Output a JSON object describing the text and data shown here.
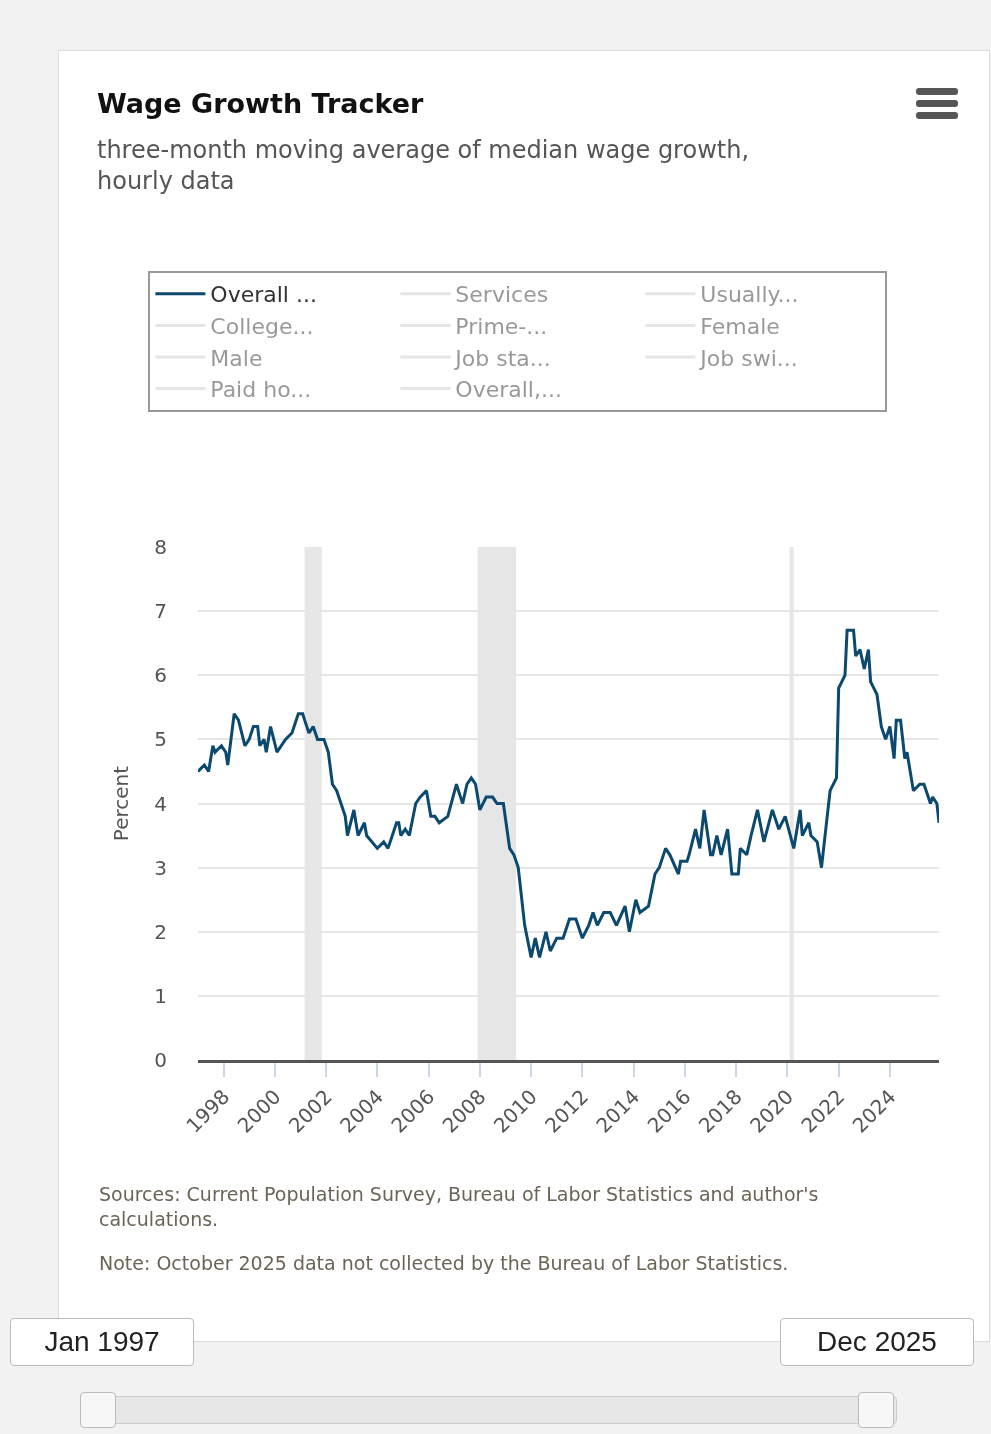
{
  "chart_data": {
    "type": "line",
    "title": "Wage Growth Tracker",
    "subtitle": "three-month moving average of median wage growth, hourly data",
    "ylabel": "Percent",
    "legend": "top",
    "grid": "y",
    "marker": "none",
    "line_style": "solid",
    "xlim": [
      "1997-01",
      "2025-12"
    ],
    "xticks": [
      "1998",
      "2000",
      "2002",
      "2004",
      "2006",
      "2008",
      "2010",
      "2012",
      "2014",
      "2016",
      "2018",
      "2020",
      "2022",
      "2024"
    ],
    "ylim": [
      0,
      8
    ],
    "yticks": [
      0,
      1,
      2,
      3,
      4,
      5,
      6,
      7,
      8
    ],
    "bands": [
      {
        "axis": "x",
        "from": "2001-03",
        "to": "2001-11",
        "color": "#e6e6e6"
      },
      {
        "axis": "x",
        "from": "2007-12",
        "to": "2009-06",
        "color": "#e6e6e6"
      },
      {
        "axis": "x",
        "from": "2020-02",
        "to": "2020-04",
        "color": "#e6e6e6"
      }
    ],
    "annotations": [
      "Sources: Current Population Survey, Bureau of Labor Statistics and author's calculations.",
      "Note: October 2025 data not collected by the Bureau of Labor Statistics.",
      "Jan 1997",
      "Dec 2025"
    ],
    "x": [
      "1997-01",
      "1997-04",
      "1997-06",
      "1997-08",
      "1997-09",
      "1997-12",
      "1998-02",
      "1998-03",
      "1998-06",
      "1998-08",
      "1998-11",
      "1999-01",
      "1999-03",
      "1999-05",
      "1999-06",
      "1999-08",
      "1999-09",
      "1999-11",
      "2000-02",
      "2000-06",
      "2000-09",
      "2000-12",
      "2001-02",
      "2001-03",
      "2001-05",
      "2001-07",
      "2001-08",
      "2001-09",
      "2001-12",
      "2002-02",
      "2002-04",
      "2002-06",
      "2002-10",
      "2002-11",
      "2003-02",
      "2003-04",
      "2003-07",
      "2003-08",
      "2004-01",
      "2004-04",
      "2004-06",
      "2004-10",
      "2004-11",
      "2004-12",
      "2005-02",
      "2005-04",
      "2005-07",
      "2005-09",
      "2005-12",
      "2006-02",
      "2006-04",
      "2006-06",
      "2006-10",
      "2007-02",
      "2007-04",
      "2007-05",
      "2007-07",
      "2007-09",
      "2007-11",
      "2008-01",
      "2008-04",
      "2008-07",
      "2008-09",
      "2008-12",
      "2009-03",
      "2009-05",
      "2009-07",
      "2009-10",
      "2010-01",
      "2010-03",
      "2010-05",
      "2010-08",
      "2010-10",
      "2011-01",
      "2011-04",
      "2011-07",
      "2011-10",
      "2012-01",
      "2012-04",
      "2012-06",
      "2012-08",
      "2012-11",
      "2013-02",
      "2013-05",
      "2013-09",
      "2013-11",
      "2014-02",
      "2014-04",
      "2014-08",
      "2014-11",
      "2015-01",
      "2015-04",
      "2015-06",
      "2015-10",
      "2015-11",
      "2016-02",
      "2016-03",
      "2016-06",
      "2016-08",
      "2016-10",
      "2017-01",
      "2017-02",
      "2017-04",
      "2017-06",
      "2017-09",
      "2017-11",
      "2018-02",
      "2018-03",
      "2018-06",
      "2018-08",
      "2018-11",
      "2019-02",
      "2019-06",
      "2019-09",
      "2019-12",
      "2020-04",
      "2020-07",
      "2020-08",
      "2020-11",
      "2020-12",
      "2021-03",
      "2021-05",
      "2021-08",
      "2021-09",
      "2021-12",
      "2022-01",
      "2022-04",
      "2022-05",
      "2022-08",
      "2022-09",
      "2022-11",
      "2023-01",
      "2023-03",
      "2023-04",
      "2023-07",
      "2023-09",
      "2023-11",
      "2024-01",
      "2024-03",
      "2024-04",
      "2024-06",
      "2024-08",
      "2024-09",
      "2024-12",
      "2025-03",
      "2025-05",
      "2025-08",
      "2025-09",
      "2025-11",
      "2025-12"
    ],
    "series": [
      {
        "name": "Overall ...",
        "color": "#0b4a6e",
        "values": [
          4.5,
          4.6,
          4.5,
          4.9,
          4.8,
          4.9,
          4.8,
          4.6,
          5.4,
          5.3,
          4.9,
          5.0,
          5.2,
          5.2,
          4.9,
          5.0,
          4.8,
          5.2,
          4.8,
          5.0,
          5.1,
          5.4,
          5.4,
          5.3,
          5.1,
          5.2,
          5.1,
          5.0,
          5.0,
          4.8,
          4.3,
          4.2,
          3.8,
          3.5,
          3.9,
          3.5,
          3.7,
          3.5,
          3.3,
          3.4,
          3.3,
          3.7,
          3.7,
          3.5,
          3.6,
          3.5,
          4.0,
          4.1,
          4.2,
          3.8,
          3.8,
          3.7,
          3.8,
          4.3,
          4.1,
          4.0,
          4.3,
          4.4,
          4.3,
          3.9,
          4.1,
          4.1,
          4.0,
          4.0,
          3.3,
          3.2,
          3.0,
          2.1,
          1.6,
          1.9,
          1.6,
          2.0,
          1.7,
          1.9,
          1.9,
          2.2,
          2.2,
          1.9,
          2.1,
          2.3,
          2.1,
          2.3,
          2.3,
          2.1,
          2.4,
          2.0,
          2.5,
          2.3,
          2.4,
          2.9,
          3.0,
          3.3,
          3.2,
          2.9,
          3.1,
          3.1,
          3.2,
          3.6,
          3.3,
          3.9,
          3.2,
          3.2,
          3.5,
          3.2,
          3.6,
          2.9,
          2.9,
          3.3,
          3.2,
          3.5,
          3.9,
          3.4,
          3.9,
          3.6,
          3.8,
          3.3,
          3.9,
          3.5,
          3.7,
          3.5,
          3.4,
          3.0,
          3.9,
          4.2,
          4.4,
          5.8,
          6.0,
          6.7,
          6.7,
          6.3,
          6.4,
          6.1,
          6.4,
          5.9,
          5.7,
          5.2,
          5.0,
          5.2,
          4.7,
          5.3,
          5.3,
          4.7,
          4.8,
          4.2,
          4.3,
          4.3,
          4.0,
          4.1,
          4.0,
          3.7
        ]
      },
      {
        "name": "Services",
        "values": [
          null,
          null,
          null,
          null,
          null,
          null,
          null,
          null,
          null,
          null,
          null,
          null,
          null,
          null,
          null,
          null,
          null,
          null,
          null,
          null,
          null,
          null,
          null,
          null,
          null,
          null,
          null,
          null,
          null,
          null,
          null,
          null,
          null,
          null,
          null,
          null,
          null,
          null,
          null,
          null,
          null,
          null,
          null,
          null,
          null,
          null,
          null,
          null,
          null,
          null,
          null,
          null,
          null,
          null,
          null,
          null,
          null,
          null,
          null,
          null,
          null,
          null,
          null,
          null,
          null,
          null,
          null,
          null,
          null,
          null,
          null,
          null,
          null,
          null,
          null,
          null,
          null,
          null,
          null,
          null,
          null,
          null,
          null,
          null,
          null,
          null,
          null,
          null,
          null,
          null,
          null,
          null,
          null,
          null,
          null,
          null,
          null,
          null,
          null,
          null,
          null,
          null,
          null,
          null,
          null,
          null,
          null,
          null,
          null,
          null,
          null,
          null,
          null,
          null,
          null,
          null,
          null,
          null,
          null,
          null,
          null,
          null,
          null,
          null,
          null,
          null,
          null,
          null,
          null,
          null,
          null,
          null,
          null,
          null,
          null,
          null,
          null,
          null,
          null,
          null,
          null,
          null,
          null,
          null,
          null,
          null,
          null,
          null,
          null,
          null
        ]
      },
      {
        "name": "Usually...",
        "values": [
          null,
          null,
          null,
          null,
          null,
          null,
          null,
          null,
          null,
          null,
          null,
          null,
          null,
          null,
          null,
          null,
          null,
          null,
          null,
          null,
          null,
          null,
          null,
          null,
          null,
          null,
          null,
          null,
          null,
          null,
          null,
          null,
          null,
          null,
          null,
          null,
          null,
          null,
          null,
          null,
          null,
          null,
          null,
          null,
          null,
          null,
          null,
          null,
          null,
          null,
          null,
          null,
          null,
          null,
          null,
          null,
          null,
          null,
          null,
          null,
          null,
          null,
          null,
          null,
          null,
          null,
          null,
          null,
          null,
          null,
          null,
          null,
          null,
          null,
          null,
          null,
          null,
          null,
          null,
          null,
          null,
          null,
          null,
          null,
          null,
          null,
          null,
          null,
          null,
          null,
          null,
          null,
          null,
          null,
          null,
          null,
          null,
          null,
          null,
          null,
          null,
          null,
          null,
          null,
          null,
          null,
          null,
          null,
          null,
          null,
          null,
          null,
          null,
          null,
          null,
          null,
          null,
          null,
          null,
          null,
          null,
          null,
          null,
          null,
          null,
          null,
          null,
          null,
          null,
          null,
          null,
          null,
          null,
          null,
          null,
          null,
          null,
          null,
          null,
          null,
          null,
          null,
          null,
          null,
          null,
          null,
          null,
          null,
          null,
          null
        ]
      },
      {
        "name": "College...",
        "values": [
          null,
          null,
          null,
          null,
          null,
          null,
          null,
          null,
          null,
          null,
          null,
          null,
          null,
          null,
          null,
          null,
          null,
          null,
          null,
          null,
          null,
          null,
          null,
          null,
          null,
          null,
          null,
          null,
          null,
          null,
          null,
          null,
          null,
          null,
          null,
          null,
          null,
          null,
          null,
          null,
          null,
          null,
          null,
          null,
          null,
          null,
          null,
          null,
          null,
          null,
          null,
          null,
          null,
          null,
          null,
          null,
          null,
          null,
          null,
          null,
          null,
          null,
          null,
          null,
          null,
          null,
          null,
          null,
          null,
          null,
          null,
          null,
          null,
          null,
          null,
          null,
          null,
          null,
          null,
          null,
          null,
          null,
          null,
          null,
          null,
          null,
          null,
          null,
          null,
          null,
          null,
          null,
          null,
          null,
          null,
          null,
          null,
          null,
          null,
          null,
          null,
          null,
          null,
          null,
          null,
          null,
          null,
          null,
          null,
          null,
          null,
          null,
          null,
          null,
          null,
          null,
          null,
          null,
          null,
          null,
          null,
          null,
          null,
          null,
          null,
          null,
          null,
          null,
          null,
          null,
          null,
          null,
          null,
          null,
          null,
          null,
          null,
          null,
          null,
          null,
          null,
          null,
          null,
          null,
          null,
          null,
          null,
          null,
          null,
          null
        ]
      },
      {
        "name": "Prime-...",
        "values": [
          null,
          null,
          null,
          null,
          null,
          null,
          null,
          null,
          null,
          null,
          null,
          null,
          null,
          null,
          null,
          null,
          null,
          null,
          null,
          null,
          null,
          null,
          null,
          null,
          null,
          null,
          null,
          null,
          null,
          null,
          null,
          null,
          null,
          null,
          null,
          null,
          null,
          null,
          null,
          null,
          null,
          null,
          null,
          null,
          null,
          null,
          null,
          null,
          null,
          null,
          null,
          null,
          null,
          null,
          null,
          null,
          null,
          null,
          null,
          null,
          null,
          null,
          null,
          null,
          null,
          null,
          null,
          null,
          null,
          null,
          null,
          null,
          null,
          null,
          null,
          null,
          null,
          null,
          null,
          null,
          null,
          null,
          null,
          null,
          null,
          null,
          null,
          null,
          null,
          null,
          null,
          null,
          null,
          null,
          null,
          null,
          null,
          null,
          null,
          null,
          null,
          null,
          null,
          null,
          null,
          null,
          null,
          null,
          null,
          null,
          null,
          null,
          null,
          null,
          null,
          null,
          null,
          null,
          null,
          null,
          null,
          null,
          null,
          null,
          null,
          null,
          null,
          null,
          null,
          null,
          null,
          null,
          null,
          null,
          null,
          null,
          null,
          null,
          null,
          null,
          null,
          null,
          null,
          null,
          null,
          null,
          null,
          null,
          null,
          null
        ]
      },
      {
        "name": "Female",
        "values": [
          null,
          null,
          null,
          null,
          null,
          null,
          null,
          null,
          null,
          null,
          null,
          null,
          null,
          null,
          null,
          null,
          null,
          null,
          null,
          null,
          null,
          null,
          null,
          null,
          null,
          null,
          null,
          null,
          null,
          null,
          null,
          null,
          null,
          null,
          null,
          null,
          null,
          null,
          null,
          null,
          null,
          null,
          null,
          null,
          null,
          null,
          null,
          null,
          null,
          null,
          null,
          null,
          null,
          null,
          null,
          null,
          null,
          null,
          null,
          null,
          null,
          null,
          null,
          null,
          null,
          null,
          null,
          null,
          null,
          null,
          null,
          null,
          null,
          null,
          null,
          null,
          null,
          null,
          null,
          null,
          null,
          null,
          null,
          null,
          null,
          null,
          null,
          null,
          null,
          null,
          null,
          null,
          null,
          null,
          null,
          null,
          null,
          null,
          null,
          null,
          null,
          null,
          null,
          null,
          null,
          null,
          null,
          null,
          null,
          null,
          null,
          null,
          null,
          null,
          null,
          null,
          null,
          null,
          null,
          null,
          null,
          null,
          null,
          null,
          null,
          null,
          null,
          null,
          null,
          null,
          null,
          null,
          null,
          null,
          null,
          null,
          null,
          null,
          null,
          null,
          null,
          null,
          null,
          null,
          null,
          null,
          null,
          null,
          null,
          null
        ]
      },
      {
        "name": "Male",
        "values": [
          null,
          null,
          null,
          null,
          null,
          null,
          null,
          null,
          null,
          null,
          null,
          null,
          null,
          null,
          null,
          null,
          null,
          null,
          null,
          null,
          null,
          null,
          null,
          null,
          null,
          null,
          null,
          null,
          null,
          null,
          null,
          null,
          null,
          null,
          null,
          null,
          null,
          null,
          null,
          null,
          null,
          null,
          null,
          null,
          null,
          null,
          null,
          null,
          null,
          null,
          null,
          null,
          null,
          null,
          null,
          null,
          null,
          null,
          null,
          null,
          null,
          null,
          null,
          null,
          null,
          null,
          null,
          null,
          null,
          null,
          null,
          null,
          null,
          null,
          null,
          null,
          null,
          null,
          null,
          null,
          null,
          null,
          null,
          null,
          null,
          null,
          null,
          null,
          null,
          null,
          null,
          null,
          null,
          null,
          null,
          null,
          null,
          null,
          null,
          null,
          null,
          null,
          null,
          null,
          null,
          null,
          null,
          null,
          null,
          null,
          null,
          null,
          null,
          null,
          null,
          null,
          null,
          null,
          null,
          null,
          null,
          null,
          null,
          null,
          null,
          null,
          null,
          null,
          null,
          null,
          null,
          null,
          null,
          null,
          null,
          null,
          null,
          null,
          null,
          null,
          null,
          null,
          null,
          null,
          null,
          null,
          null,
          null,
          null,
          null
        ]
      },
      {
        "name": "Job sta...",
        "values": [
          null,
          null,
          null,
          null,
          null,
          null,
          null,
          null,
          null,
          null,
          null,
          null,
          null,
          null,
          null,
          null,
          null,
          null,
          null,
          null,
          null,
          null,
          null,
          null,
          null,
          null,
          null,
          null,
          null,
          null,
          null,
          null,
          null,
          null,
          null,
          null,
          null,
          null,
          null,
          null,
          null,
          null,
          null,
          null,
          null,
          null,
          null,
          null,
          null,
          null,
          null,
          null,
          null,
          null,
          null,
          null,
          null,
          null,
          null,
          null,
          null,
          null,
          null,
          null,
          null,
          null,
          null,
          null,
          null,
          null,
          null,
          null,
          null,
          null,
          null,
          null,
          null,
          null,
          null,
          null,
          null,
          null,
          null,
          null,
          null,
          null,
          null,
          null,
          null,
          null,
          null,
          null,
          null,
          null,
          null,
          null,
          null,
          null,
          null,
          null,
          null,
          null,
          null,
          null,
          null,
          null,
          null,
          null,
          null,
          null,
          null,
          null,
          null,
          null,
          null,
          null,
          null,
          null,
          null,
          null,
          null,
          null,
          null,
          null,
          null,
          null,
          null,
          null,
          null,
          null,
          null,
          null,
          null,
          null,
          null,
          null,
          null,
          null,
          null,
          null,
          null,
          null,
          null,
          null,
          null,
          null,
          null,
          null,
          null,
          null
        ]
      },
      {
        "name": "Job swi...",
        "values": [
          null,
          null,
          null,
          null,
          null,
          null,
          null,
          null,
          null,
          null,
          null,
          null,
          null,
          null,
          null,
          null,
          null,
          null,
          null,
          null,
          null,
          null,
          null,
          null,
          null,
          null,
          null,
          null,
          null,
          null,
          null,
          null,
          null,
          null,
          null,
          null,
          null,
          null,
          null,
          null,
          null,
          null,
          null,
          null,
          null,
          null,
          null,
          null,
          null,
          null,
          null,
          null,
          null,
          null,
          null,
          null,
          null,
          null,
          null,
          null,
          null,
          null,
          null,
          null,
          null,
          null,
          null,
          null,
          null,
          null,
          null,
          null,
          null,
          null,
          null,
          null,
          null,
          null,
          null,
          null,
          null,
          null,
          null,
          null,
          null,
          null,
          null,
          null,
          null,
          null,
          null,
          null,
          null,
          null,
          null,
          null,
          null,
          null,
          null,
          null,
          null,
          null,
          null,
          null,
          null,
          null,
          null,
          null,
          null,
          null,
          null,
          null,
          null,
          null,
          null,
          null,
          null,
          null,
          null,
          null,
          null,
          null,
          null,
          null,
          null,
          null,
          null,
          null,
          null,
          null,
          null,
          null,
          null,
          null,
          null,
          null,
          null,
          null,
          null,
          null,
          null,
          null,
          null,
          null,
          null,
          null,
          null,
          null,
          null,
          null
        ]
      },
      {
        "name": "Paid ho...",
        "values": [
          null,
          null,
          null,
          null,
          null,
          null,
          null,
          null,
          null,
          null,
          null,
          null,
          null,
          null,
          null,
          null,
          null,
          null,
          null,
          null,
          null,
          null,
          null,
          null,
          null,
          null,
          null,
          null,
          null,
          null,
          null,
          null,
          null,
          null,
          null,
          null,
          null,
          null,
          null,
          null,
          null,
          null,
          null,
          null,
          null,
          null,
          null,
          null,
          null,
          null,
          null,
          null,
          null,
          null,
          null,
          null,
          null,
          null,
          null,
          null,
          null,
          null,
          null,
          null,
          null,
          null,
          null,
          null,
          null,
          null,
          null,
          null,
          null,
          null,
          null,
          null,
          null,
          null,
          null,
          null,
          null,
          null,
          null,
          null,
          null,
          null,
          null,
          null,
          null,
          null,
          null,
          null,
          null,
          null,
          null,
          null,
          null,
          null,
          null,
          null,
          null,
          null,
          null,
          null,
          null,
          null,
          null,
          null,
          null,
          null,
          null,
          null,
          null,
          null,
          null,
          null,
          null,
          null,
          null,
          null,
          null,
          null,
          null,
          null,
          null,
          null,
          null,
          null,
          null,
          null,
          null,
          null,
          null,
          null,
          null,
          null,
          null,
          null,
          null,
          null,
          null,
          null,
          null,
          null,
          null,
          null,
          null,
          null,
          null,
          null
        ]
      },
      {
        "name": "Overall,...",
        "values": [
          null,
          null,
          null,
          null,
          null,
          null,
          null,
          null,
          null,
          null,
          null,
          null,
          null,
          null,
          null,
          null,
          null,
          null,
          null,
          null,
          null,
          null,
          null,
          null,
          null,
          null,
          null,
          null,
          null,
          null,
          null,
          null,
          null,
          null,
          null,
          null,
          null,
          null,
          null,
          null,
          null,
          null,
          null,
          null,
          null,
          null,
          null,
          null,
          null,
          null,
          null,
          null,
          null,
          null,
          null,
          null,
          null,
          null,
          null,
          null,
          null,
          null,
          null,
          null,
          null,
          null,
          null,
          null,
          null,
          null,
          null,
          null,
          null,
          null,
          null,
          null,
          null,
          null,
          null,
          null,
          null,
          null,
          null,
          null,
          null,
          null,
          null,
          null,
          null,
          null,
          null,
          null,
          null,
          null,
          null,
          null,
          null,
          null,
          null,
          null,
          null,
          null,
          null,
          null,
          null,
          null,
          null,
          null,
          null,
          null,
          null,
          null,
          null,
          null,
          null,
          null,
          null,
          null,
          null,
          null,
          null,
          null,
          null,
          null,
          null,
          null,
          null,
          null,
          null,
          null,
          null,
          null,
          null,
          null,
          null,
          null,
          null,
          null,
          null,
          null,
          null,
          null,
          null,
          null,
          null,
          null,
          null,
          null,
          null,
          null
        ]
      }
    ]
  }
}
